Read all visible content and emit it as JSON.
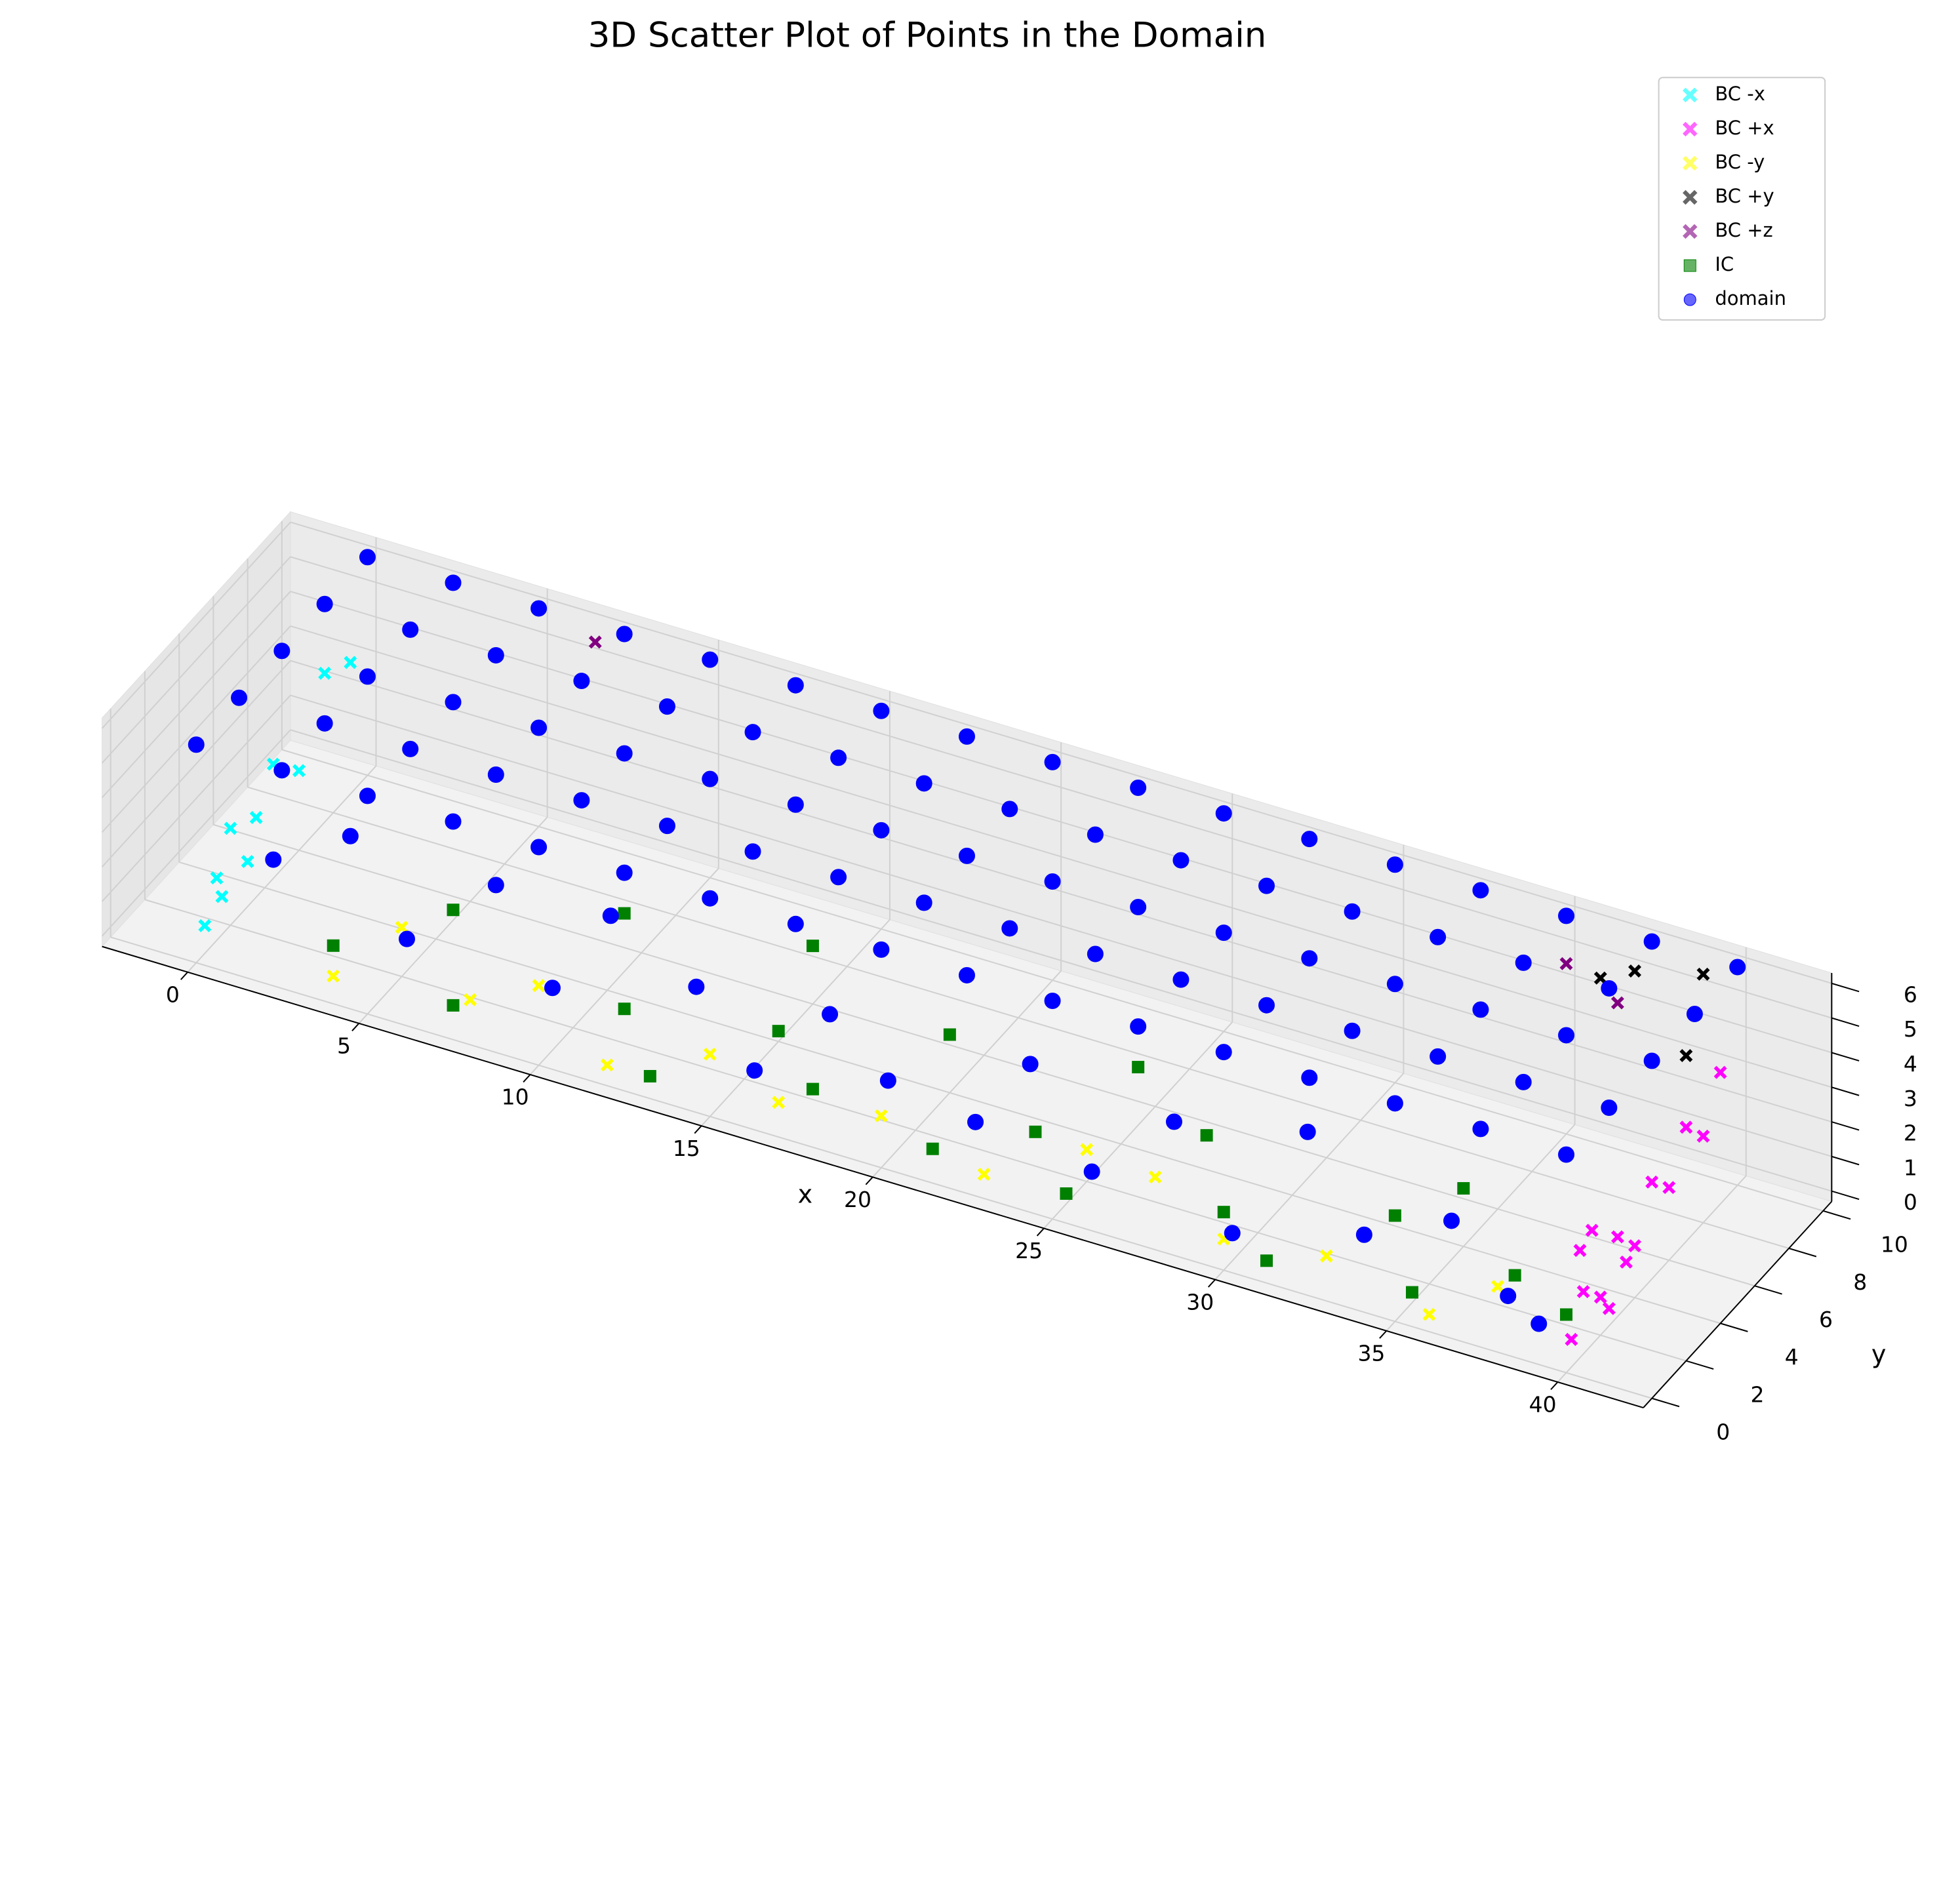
{
  "chart_data": {
    "type": "scatter3d",
    "title": "3D Scatter Plot of Points in the Domain",
    "xlabel": "x",
    "ylabel": "y",
    "xlim": [
      -2.5,
      42.5
    ],
    "ylim": [
      -0.5,
      10.5
    ],
    "zlim": [
      -0.3,
      6.3
    ],
    "xticks": [
      0,
      5,
      10,
      15,
      20,
      25,
      30,
      35,
      40
    ],
    "yticks": [
      0,
      2,
      4,
      6,
      8,
      10
    ],
    "zticks": [
      0,
      1,
      2,
      3,
      4,
      5,
      6
    ],
    "grid": true,
    "legend": "upper right",
    "series": [
      {
        "name": "BC -x",
        "color": "#00ffff",
        "marker": "x",
        "alpha": 0.6,
        "x": [
          0,
          0,
          0,
          0,
          0,
          0,
          0,
          0,
          0,
          0
        ],
        "y": [
          0.5,
          1.2,
          2,
          3,
          4.5,
          6,
          7.5,
          9,
          1.5,
          3.5
        ],
        "z": [
          0.5,
          1.5,
          2.5,
          1,
          3,
          2,
          4,
          3.5,
          0.8,
          2
        ]
      },
      {
        "name": "BC +x",
        "color": "#ff00ff",
        "marker": "x",
        "alpha": 0.6,
        "x": [
          40,
          40,
          40,
          40,
          40,
          40,
          40,
          40,
          40,
          40,
          40,
          40,
          40,
          40
        ],
        "y": [
          0.3,
          1,
          2,
          3,
          4,
          5,
          6,
          7,
          8,
          9,
          1.5,
          2.5,
          3.5,
          0.8
        ],
        "z": [
          0.5,
          1.5,
          0.8,
          2,
          1.2,
          2.5,
          1.8,
          3,
          2.2,
          3.5,
          3,
          0.2,
          1,
          2.8
        ]
      },
      {
        "name": "BC -y",
        "color": "#ffff00",
        "marker": "x",
        "alpha": 0.6,
        "x": [
          4,
          8,
          10,
          12,
          15,
          17,
          20,
          23,
          26,
          30,
          33,
          36,
          38,
          6,
          28
        ],
        "y": [
          0,
          0,
          0,
          0,
          0,
          0,
          0,
          0,
          0,
          0,
          0,
          0,
          0,
          0,
          0
        ],
        "z": [
          0.5,
          1,
          2,
          0.3,
          1.5,
          0.7,
          1.2,
          0.4,
          2,
          0.6,
          1,
          0.2,
          1.6,
          2.5,
          1.8
        ]
      },
      {
        "name": "BC +y",
        "color": "#000000",
        "marker": "x",
        "alpha": 0.6,
        "x": [
          37,
          38.5,
          36,
          39
        ],
        "y": [
          10,
          10,
          10,
          10
        ],
        "z": [
          5,
          3,
          4.5,
          5.5
        ]
      },
      {
        "name": "BC +z",
        "color": "#800080",
        "marker": "x",
        "alpha": 0.6,
        "x": [
          7,
          36,
          38
        ],
        "y": [
          9.3,
          8,
          7
        ],
        "z": [
          6,
          6,
          6
        ]
      },
      {
        "name": "IC",
        "color": "#008000",
        "marker": "s",
        "alpha": 0.6,
        "x": [
          3,
          5,
          7,
          9,
          11,
          13,
          15,
          17,
          19,
          21,
          23,
          25,
          27,
          29,
          31,
          33,
          35,
          37,
          39,
          14,
          24,
          34
        ],
        "y": [
          2,
          5,
          1,
          7,
          3,
          0.5,
          4,
          2,
          6,
          1,
          3,
          0.8,
          5,
          2,
          0.5,
          4,
          1,
          3,
          2,
          8,
          7,
          6
        ],
        "z": [
          0,
          0,
          0,
          0,
          0,
          0,
          0,
          0,
          0,
          0,
          0,
          0,
          0,
          0,
          0,
          0,
          0,
          0,
          0,
          0,
          0,
          0
        ]
      },
      {
        "name": "domain",
        "color": "#0000ff",
        "marker": "o",
        "alpha": 0.6,
        "x": [
          0,
          2.5,
          5,
          7.5,
          10,
          12.5,
          15,
          17.5,
          20,
          22.5,
          25,
          27.5,
          30,
          32.5,
          35,
          37.5,
          40,
          0,
          2.5,
          5,
          7.5,
          10,
          12.5,
          15,
          17.5,
          20,
          22.5,
          25,
          27.5,
          30,
          32.5,
          35,
          37.5,
          40,
          0,
          2.5,
          5,
          7.5,
          10,
          12.5,
          15,
          17.5,
          20,
          22.5,
          25,
          27.5,
          30,
          32.5,
          35,
          37.5,
          40,
          0,
          2.5,
          5,
          7.5,
          10,
          12.5,
          15,
          17.5,
          20,
          22.5,
          25,
          27.5,
          30,
          32.5,
          35,
          37.5,
          40,
          0,
          2.5,
          5,
          7.5,
          10,
          12.5,
          15,
          17.5,
          20,
          22.5,
          25,
          27.5,
          30,
          32.5,
          35,
          37.5,
          40,
          2,
          4,
          6,
          8,
          10,
          12,
          14,
          16,
          18,
          20,
          22,
          24,
          26,
          28,
          30,
          32,
          34,
          36,
          38,
          39
        ],
        "y": [
          10,
          10,
          10,
          10,
          10,
          10,
          10,
          10,
          10,
          10,
          10,
          10,
          10,
          10,
          10,
          10,
          10,
          7.5,
          7.5,
          7.5,
          7.5,
          7.5,
          7.5,
          7.5,
          7.5,
          7.5,
          7.5,
          7.5,
          7.5,
          7.5,
          7.5,
          7.5,
          7.5,
          7.5,
          5,
          5,
          5,
          5,
          5,
          5,
          5,
          5,
          5,
          5,
          5,
          5,
          5,
          5,
          5,
          5,
          5,
          2.5,
          2.5,
          2.5,
          2.5,
          2.5,
          2.5,
          2.5,
          2.5,
          2.5,
          2.5,
          2.5,
          2.5,
          2.5,
          2.5,
          2.5,
          2.5,
          2.5,
          0,
          0,
          0,
          0,
          0,
          0,
          0,
          0,
          0,
          0,
          0,
          0,
          0,
          0,
          0,
          0,
          0,
          0.5,
          1,
          0.3,
          1.5,
          0.8,
          0.2,
          1.2,
          0.6,
          1,
          0.4,
          1.5,
          0.7,
          0.3,
          1.1,
          0.5,
          0.9,
          0.2,
          1.3,
          0.6,
          0.4
        ],
        "z": [
          6,
          6,
          6,
          6,
          6,
          6,
          6,
          6,
          6,
          6,
          6,
          6,
          6,
          6,
          6,
          6,
          6,
          6,
          6,
          6,
          6,
          6,
          6,
          6,
          6,
          6,
          6,
          6,
          6,
          6,
          6,
          6,
          6,
          6,
          6,
          6,
          6,
          6,
          6,
          6,
          6,
          6,
          6,
          6,
          6,
          6,
          6,
          6,
          6,
          6,
          6,
          6,
          6,
          6,
          6,
          6,
          6,
          6,
          6,
          6,
          6,
          6,
          6,
          6,
          6,
          6,
          6,
          6,
          6,
          6,
          6,
          6,
          6,
          6,
          6,
          6,
          6,
          6,
          6,
          6,
          6,
          6,
          6,
          6,
          6,
          3,
          4,
          2,
          3.5,
          1.5,
          4.5,
          2.5,
          1,
          3,
          2,
          0.8,
          3.5,
          1.2,
          2.8,
          0.5,
          3.8,
          1.8,
          2.2,
          1,
          0.6
        ]
      }
    ]
  }
}
